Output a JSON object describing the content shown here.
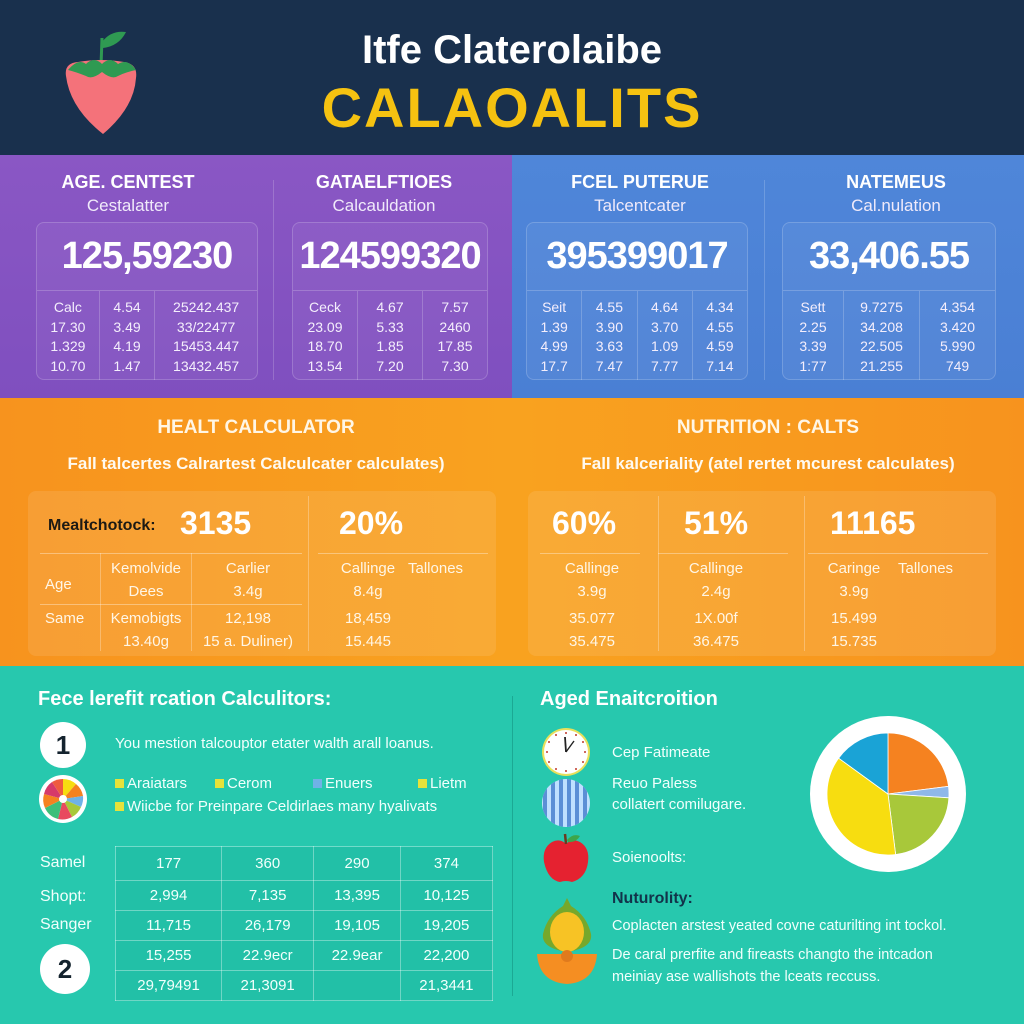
{
  "header": {
    "title": "Itfe Claterolaibe",
    "subtitle": "CALAOALITS",
    "logo_icon": "strawberry-icon"
  },
  "stats": [
    {
      "title": "AGE. CENTEST",
      "subtitle": "Cestalatter",
      "value": "125,59230",
      "columns": [
        [
          "Calc",
          "17.30",
          "1.329",
          "10.70"
        ],
        [
          "4.54",
          "3.49",
          "4.19",
          "1.47"
        ],
        [
          "25242.437",
          "33/22477",
          "15453.447",
          "13432.457"
        ]
      ]
    },
    {
      "title": "GATAELFTIOES",
      "subtitle": "Calcauldation",
      "value": "124599320",
      "columns": [
        [
          "Ceck",
          "23.09",
          "18.70",
          "13.54"
        ],
        [
          "4.67",
          "5.33",
          "1.85",
          "7.20"
        ],
        [
          "7.57",
          "2460",
          "17.85",
          "7.30"
        ]
      ]
    },
    {
      "title": "FCEL PUTERUE",
      "subtitle": "Talcentcater",
      "value": "395399017",
      "columns": [
        [
          "Seit",
          "1.39",
          "4.99",
          "17.7"
        ],
        [
          "4.55",
          "3.90",
          "3.63",
          "7.47"
        ],
        [
          "4.64",
          "3.70",
          "1.09",
          "7.77"
        ],
        [
          "4.34",
          "4.55",
          "4.59",
          "7.14"
        ]
      ]
    },
    {
      "title": "NATEMEUS",
      "subtitle": "Cal.nulation",
      "value": "33,406.55",
      "columns": [
        [
          "Sett",
          "2.25",
          "3.39",
          "1:77"
        ],
        [
          "9.7275",
          "34.208",
          "22.505",
          "21.255"
        ],
        [
          "4.354",
          "3.420",
          "5.990",
          "749"
        ]
      ]
    }
  ],
  "health": {
    "title": "HEALT CALCULATOR",
    "subtitle": "Fall talcertes Calrartest Calculcater calculates)",
    "label": "Mealtchotock:",
    "value_main": "3135",
    "value_pct": "20%",
    "row_labels": [
      "Age",
      "Same"
    ],
    "col1": [
      "Kemolvide",
      "Dees",
      "Kemobigts",
      "13.40g"
    ],
    "col2": [
      "Carlier",
      "3.4g",
      "12,198",
      "15 a. Duliner)"
    ],
    "col3": [
      "Callinge",
      "8.4g",
      "18,459",
      "15.445"
    ],
    "col3_header_extra": "Tallones"
  },
  "nutrition": {
    "title": "NUTRITION : CALTS",
    "subtitle": "Fall kalceriality (atel rertet mcurest calculates)",
    "values": [
      "60%",
      "51%",
      "11165"
    ],
    "col1": [
      "Callinge",
      "3.9g",
      "35.077",
      "35.475"
    ],
    "col2": [
      "Callinge",
      "2.4g",
      "1X.00f",
      "36.475"
    ],
    "col3": [
      "Caringe",
      "3.9g",
      "15.499",
      "15.735"
    ],
    "col3_header_extra": "Tallones"
  },
  "free_calc": {
    "title": "Fece lerefit rcation Calculitors:",
    "step1_number": "1",
    "step1_text": "You mestion talcouptor etater walth arall loanus.",
    "legend": [
      {
        "label": "Araiatars",
        "color": "#e6e23a"
      },
      {
        "label": "Cerom",
        "color": "#e6e23a"
      },
      {
        "label": "Enuers",
        "color": "#6fb2e6"
      },
      {
        "label": "Lietm",
        "color": "#e6e23a"
      }
    ],
    "legend_line2": "Wiicbe for Preinpare Celdirlaes many hyalivats",
    "step2_number": "2",
    "table_row_labels": [
      "Samel",
      "Shopt:",
      "Sanger"
    ],
    "table": [
      [
        "177",
        "360",
        "290",
        "374"
      ],
      [
        "2,994",
        "7,135",
        "13,395",
        "10,125"
      ],
      [
        "11,715",
        "26,179",
        "19,105",
        "19,205"
      ],
      [
        "15,255",
        "22.9ecr",
        "22.9ear",
        "22,200"
      ],
      [
        "29,79491",
        "21,3091",
        "",
        "21,3441"
      ]
    ]
  },
  "aged": {
    "title": "Aged Enaitcroition",
    "items": [
      {
        "icon": "clock-icon",
        "text": "Cep Fatimeate"
      },
      {
        "icon": "striped-ball-icon",
        "text": "Reuo Paless",
        "text2": "collatert comilugare."
      },
      {
        "icon": "apple-icon",
        "text": "Soienoolts:"
      },
      {
        "icon": "fruit-bowl-icon",
        "heading": "Nuturolity:",
        "text": "Coplacten arstest yeated covne caturilting int tockol.",
        "text2": "De caral prerfite and fireasts changto the intcadon",
        "text3": "meiniay ase wallishots the lceats reccuss."
      }
    ]
  },
  "chart_data": {
    "type": "pie",
    "title": "",
    "categories": [
      "Orange",
      "Light blue",
      "Green",
      "Yellow",
      "Blue"
    ],
    "values": [
      23,
      3,
      22,
      37,
      15
    ],
    "colors": [
      "#f58220",
      "#8fb8e8",
      "#a8c83a",
      "#f7dd10",
      "#1aa3d6"
    ]
  },
  "colors": {
    "header_bg": "#19304d",
    "title_yellow": "#f5c211",
    "purple": "#8153c2",
    "blue": "#4c82d6",
    "orange": "#f7961e",
    "teal": "#27c8ae"
  }
}
